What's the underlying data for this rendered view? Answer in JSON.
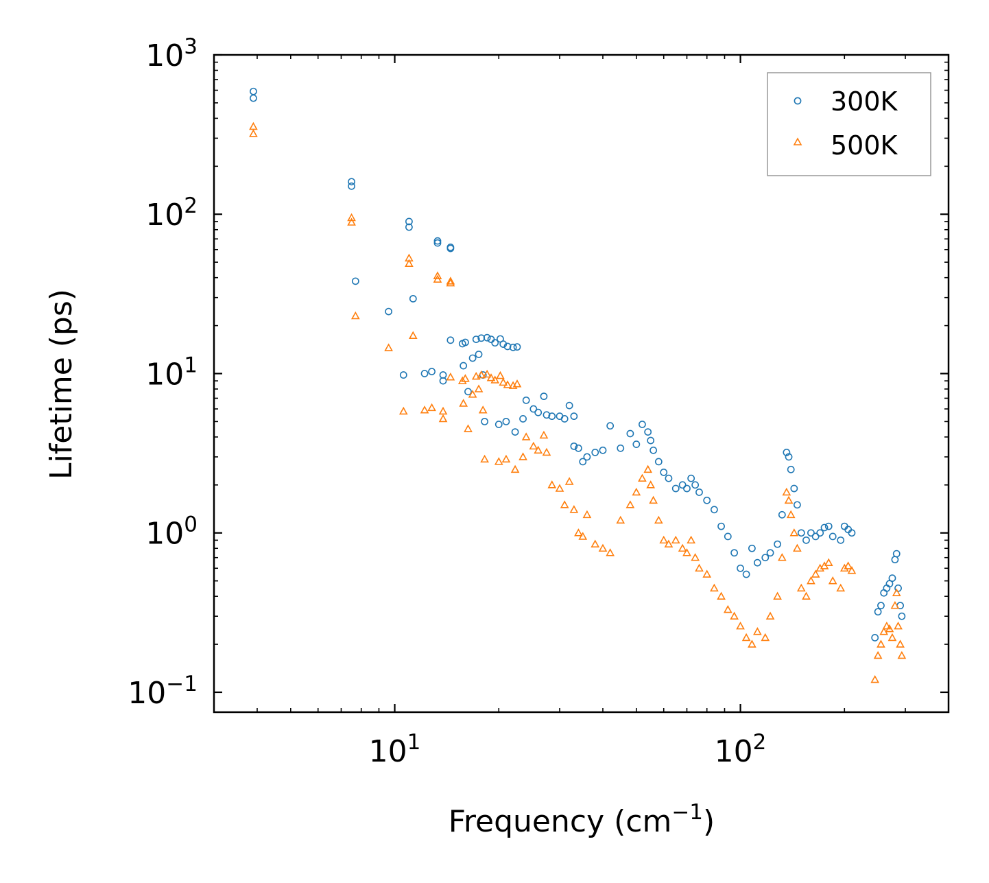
{
  "chart_data": {
    "type": "scatter",
    "xscale": "log",
    "yscale": "log",
    "xlabel": "Frequency (cm",
    "xlabel_exponent": "−1",
    "xlabel_suffix": ")",
    "ylabel": "Lifetime (ps)",
    "xlim": [
      3.0,
      400
    ],
    "ylim": [
      0.075,
      1000
    ],
    "x_ticks": [
      {
        "base": "10",
        "exp": "1",
        "value": 10
      },
      {
        "base": "10",
        "exp": "2",
        "value": 100
      }
    ],
    "y_ticks": [
      {
        "base": "10",
        "exp": "−1",
        "value": 0.1
      },
      {
        "base": "10",
        "exp": "0",
        "value": 1
      },
      {
        "base": "10",
        "exp": "1",
        "value": 10
      },
      {
        "base": "10",
        "exp": "2",
        "value": 100
      },
      {
        "base": "10",
        "exp": "3",
        "value": 1000
      }
    ],
    "grid": false,
    "legend_position": "top-right",
    "series": [
      {
        "name": "300K",
        "color": "#1f77b4",
        "marker": "circle",
        "points": [
          [
            3.9,
            590
          ],
          [
            3.9,
            535
          ],
          [
            7.5,
            160
          ],
          [
            7.5,
            150
          ],
          [
            7.7,
            38
          ],
          [
            9.6,
            24.5
          ],
          [
            11.0,
            90
          ],
          [
            11.0,
            83
          ],
          [
            11.3,
            29.5
          ],
          [
            10.6,
            9.8
          ],
          [
            12.2,
            10.0
          ],
          [
            12.8,
            10.3
          ],
          [
            13.3,
            68
          ],
          [
            13.3,
            66
          ],
          [
            14.5,
            62
          ],
          [
            14.5,
            61
          ],
          [
            14.5,
            16.2
          ],
          [
            13.8,
            9.8
          ],
          [
            13.8,
            9.0
          ],
          [
            15.7,
            15.4
          ],
          [
            16.0,
            15.7
          ],
          [
            16.3,
            7.7
          ],
          [
            17.2,
            16.4
          ],
          [
            17.5,
            13.2
          ],
          [
            17.8,
            16.7
          ],
          [
            18.5,
            16.8
          ],
          [
            19.0,
            16.4
          ],
          [
            19.5,
            15.6
          ],
          [
            20.2,
            16.5
          ],
          [
            20.6,
            15.3
          ],
          [
            21.2,
            14.8
          ],
          [
            22.0,
            14.6
          ],
          [
            22.6,
            14.7
          ],
          [
            16.8,
            12.5
          ],
          [
            15.8,
            11.2
          ],
          [
            18.0,
            9.8
          ],
          [
            18.2,
            5.0
          ],
          [
            20.0,
            4.8
          ],
          [
            21.0,
            5.0
          ],
          [
            22.3,
            4.3
          ],
          [
            23.5,
            5.2
          ],
          [
            24.0,
            6.8
          ],
          [
            25.2,
            6.0
          ],
          [
            26.0,
            5.7
          ],
          [
            27.0,
            7.2
          ],
          [
            27.5,
            5.5
          ],
          [
            28.5,
            5.4
          ],
          [
            30.0,
            5.4
          ],
          [
            31.0,
            5.2
          ],
          [
            32.0,
            6.3
          ],
          [
            33.0,
            5.4
          ],
          [
            33.0,
            3.5
          ],
          [
            34.0,
            3.4
          ],
          [
            35.0,
            2.8
          ],
          [
            36.0,
            3.0
          ],
          [
            38.0,
            3.2
          ],
          [
            40.0,
            3.3
          ],
          [
            42.0,
            4.7
          ],
          [
            45.0,
            3.4
          ],
          [
            48.0,
            4.2
          ],
          [
            50.0,
            3.6
          ],
          [
            52.0,
            4.8
          ],
          [
            54.0,
            4.3
          ],
          [
            55.0,
            3.8
          ],
          [
            56.0,
            3.3
          ],
          [
            58.0,
            2.8
          ],
          [
            60.0,
            2.4
          ],
          [
            62.0,
            2.2
          ],
          [
            65.0,
            1.9
          ],
          [
            68.0,
            2.0
          ],
          [
            70.0,
            1.9
          ],
          [
            72.0,
            2.2
          ],
          [
            74.0,
            2.0
          ],
          [
            76.0,
            1.8
          ],
          [
            80.0,
            1.6
          ],
          [
            84.0,
            1.4
          ],
          [
            88.0,
            1.1
          ],
          [
            92.0,
            0.95
          ],
          [
            96.0,
            0.75
          ],
          [
            100.0,
            0.6
          ],
          [
            104.0,
            0.55
          ],
          [
            108.0,
            0.8
          ],
          [
            112.0,
            0.65
          ],
          [
            118.0,
            0.7
          ],
          [
            122.0,
            0.75
          ],
          [
            128.0,
            0.85
          ],
          [
            132.0,
            1.3
          ],
          [
            136.0,
            3.2
          ],
          [
            138.0,
            3.0
          ],
          [
            140.0,
            2.5
          ],
          [
            143.0,
            1.9
          ],
          [
            146.0,
            1.5
          ],
          [
            150.0,
            1.0
          ],
          [
            155.0,
            0.9
          ],
          [
            160.0,
            1.0
          ],
          [
            165.0,
            0.95
          ],
          [
            170.0,
            1.0
          ],
          [
            175.0,
            1.08
          ],
          [
            180.0,
            1.1
          ],
          [
            185.0,
            0.95
          ],
          [
            195.0,
            0.9
          ],
          [
            200.0,
            1.1
          ],
          [
            205.0,
            1.05
          ],
          [
            210.0,
            1.0
          ],
          [
            245.0,
            0.22
          ],
          [
            250.0,
            0.32
          ],
          [
            255.0,
            0.35
          ],
          [
            260.0,
            0.42
          ],
          [
            265.0,
            0.45
          ],
          [
            270.0,
            0.48
          ],
          [
            275.0,
            0.52
          ],
          [
            280.0,
            0.68
          ],
          [
            283.0,
            0.74
          ],
          [
            286.0,
            0.45
          ],
          [
            290.0,
            0.35
          ],
          [
            293.0,
            0.3
          ]
        ]
      },
      {
        "name": "500K",
        "color": "#ff7f0e",
        "marker": "triangle",
        "points": [
          [
            3.9,
            355
          ],
          [
            3.9,
            320
          ],
          [
            7.5,
            95
          ],
          [
            7.5,
            89
          ],
          [
            7.7,
            23
          ],
          [
            9.6,
            14.5
          ],
          [
            11.0,
            53
          ],
          [
            11.0,
            49
          ],
          [
            11.3,
            17.3
          ],
          [
            10.6,
            5.8
          ],
          [
            12.2,
            5.9
          ],
          [
            12.8,
            6.1
          ],
          [
            13.3,
            41
          ],
          [
            13.3,
            39
          ],
          [
            14.5,
            38
          ],
          [
            14.5,
            37
          ],
          [
            14.5,
            9.5
          ],
          [
            13.8,
            5.8
          ],
          [
            13.8,
            5.2
          ],
          [
            15.7,
            9.0
          ],
          [
            16.0,
            9.3
          ],
          [
            16.3,
            4.5
          ],
          [
            17.2,
            9.6
          ],
          [
            17.5,
            8.0
          ],
          [
            17.8,
            9.8
          ],
          [
            18.5,
            9.9
          ],
          [
            19.0,
            9.4
          ],
          [
            19.5,
            9.1
          ],
          [
            20.2,
            9.7
          ],
          [
            20.6,
            8.8
          ],
          [
            21.2,
            8.5
          ],
          [
            22.0,
            8.4
          ],
          [
            22.6,
            8.6
          ],
          [
            16.8,
            7.4
          ],
          [
            15.8,
            6.5
          ],
          [
            18.0,
            5.9
          ],
          [
            18.2,
            2.9
          ],
          [
            20.0,
            2.8
          ],
          [
            21.0,
            2.9
          ],
          [
            22.3,
            2.5
          ],
          [
            23.5,
            3.0
          ],
          [
            24.0,
            4.0
          ],
          [
            25.2,
            3.5
          ],
          [
            26.0,
            3.3
          ],
          [
            27.0,
            4.1
          ],
          [
            27.5,
            3.2
          ],
          [
            28.5,
            2.0
          ],
          [
            30.0,
            1.9
          ],
          [
            31.0,
            1.5
          ],
          [
            32.0,
            2.1
          ],
          [
            33.0,
            1.4
          ],
          [
            34.0,
            1.0
          ],
          [
            35.0,
            0.95
          ],
          [
            36.0,
            1.3
          ],
          [
            38.0,
            0.85
          ],
          [
            40.0,
            0.8
          ],
          [
            42.0,
            0.75
          ],
          [
            45.0,
            1.2
          ],
          [
            48.0,
            1.5
          ],
          [
            50.0,
            1.8
          ],
          [
            52.0,
            2.2
          ],
          [
            54.0,
            2.5
          ],
          [
            55.0,
            2.0
          ],
          [
            56.0,
            1.6
          ],
          [
            58.0,
            1.2
          ],
          [
            60.0,
            0.9
          ],
          [
            62.0,
            0.85
          ],
          [
            65.0,
            0.9
          ],
          [
            68.0,
            0.8
          ],
          [
            70.0,
            0.75
          ],
          [
            72.0,
            0.9
          ],
          [
            74.0,
            0.7
          ],
          [
            76.0,
            0.6
          ],
          [
            80.0,
            0.55
          ],
          [
            84.0,
            0.45
          ],
          [
            88.0,
            0.4
          ],
          [
            92.0,
            0.33
          ],
          [
            96.0,
            0.3
          ],
          [
            100.0,
            0.26
          ],
          [
            104.0,
            0.22
          ],
          [
            108.0,
            0.2
          ],
          [
            112.0,
            0.24
          ],
          [
            118.0,
            0.22
          ],
          [
            122.0,
            0.3
          ],
          [
            128.0,
            0.4
          ],
          [
            132.0,
            0.7
          ],
          [
            136.0,
            1.8
          ],
          [
            138.0,
            1.6
          ],
          [
            140.0,
            1.3
          ],
          [
            143.0,
            1.0
          ],
          [
            146.0,
            0.8
          ],
          [
            150.0,
            0.45
          ],
          [
            155.0,
            0.4
          ],
          [
            160.0,
            0.5
          ],
          [
            165.0,
            0.55
          ],
          [
            170.0,
            0.6
          ],
          [
            175.0,
            0.62
          ],
          [
            180.0,
            0.65
          ],
          [
            185.0,
            0.5
          ],
          [
            195.0,
            0.45
          ],
          [
            200.0,
            0.6
          ],
          [
            205.0,
            0.62
          ],
          [
            210.0,
            0.58
          ],
          [
            245.0,
            0.12
          ],
          [
            250.0,
            0.17
          ],
          [
            255.0,
            0.2
          ],
          [
            260.0,
            0.24
          ],
          [
            265.0,
            0.26
          ],
          [
            270.0,
            0.25
          ],
          [
            275.0,
            0.22
          ],
          [
            280.0,
            0.35
          ],
          [
            283.0,
            0.42
          ],
          [
            286.0,
            0.26
          ],
          [
            290.0,
            0.2
          ],
          [
            293.0,
            0.17
          ]
        ]
      }
    ]
  }
}
